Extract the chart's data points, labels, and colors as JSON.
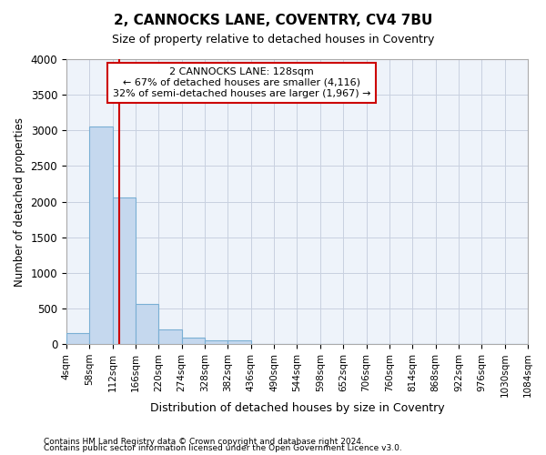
{
  "title_line1": "2, CANNOCKS LANE, COVENTRY, CV4 7BU",
  "title_line2": "Size of property relative to detached houses in Coventry",
  "xlabel": "Distribution of detached houses by size in Coventry",
  "ylabel": "Number of detached properties",
  "footnote1": "Contains HM Land Registry data © Crown copyright and database right 2024.",
  "footnote2": "Contains public sector information licensed under the Open Government Licence v3.0.",
  "bin_edges": [
    4,
    58,
    112,
    166,
    220,
    274,
    328,
    382,
    436,
    490,
    544,
    598,
    652,
    706,
    760,
    814,
    868,
    922,
    976,
    1030,
    1084
  ],
  "bar_heights": [
    150,
    3060,
    2060,
    560,
    210,
    85,
    55,
    50,
    0,
    0,
    0,
    0,
    0,
    0,
    0,
    0,
    0,
    0,
    0,
    0
  ],
  "bar_color": "#c5d8ee",
  "bar_edge_color": "#7aafd4",
  "property_size": 128,
  "vline_color": "#cc0000",
  "annotation_text": "2 CANNOCKS LANE: 128sqm\n← 67% of detached houses are smaller (4,116)\n32% of semi-detached houses are larger (1,967) →",
  "annotation_box_color": "#cc0000",
  "ylim": [
    0,
    4000
  ],
  "yticks": [
    0,
    500,
    1000,
    1500,
    2000,
    2500,
    3000,
    3500,
    4000
  ],
  "ax_facecolor": "#eef3fa",
  "background_color": "#ffffff",
  "grid_color": "#c8d0e0",
  "figsize": [
    6.0,
    5.0
  ],
  "dpi": 100
}
